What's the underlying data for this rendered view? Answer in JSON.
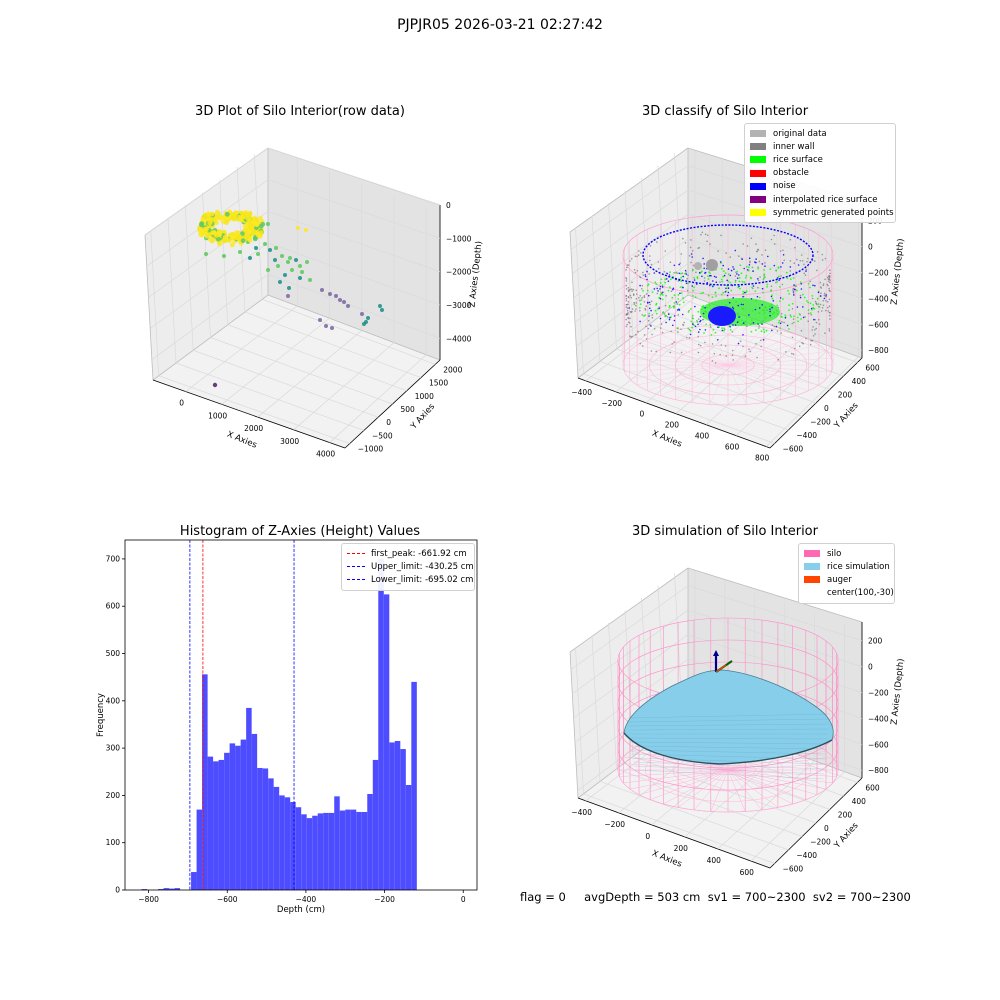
{
  "suptitle": "PJPJR05 2026-03-21 02:27:42",
  "footer": {
    "text": "flag = 0     avgDepth = 503 cm  sv1 = 700~2300  sv2 = 700~2300"
  },
  "chart_data": [
    {
      "type": "scatter",
      "projection": "3d",
      "title": "3D Plot of Silo Interior(row data)",
      "xlabel": "X Axies",
      "ylabel": "Y Axies",
      "zlabel": "Z Axies (Depth)",
      "x_ticks": [
        "0",
        "1000",
        "2000",
        "3000",
        "4000"
      ],
      "y_ticks": [
        "−1000",
        "−500",
        "0",
        "500",
        "1000",
        "1500",
        "2000"
      ],
      "z_ticks": [
        "0",
        "−1000",
        "−2000",
        "−3000",
        "−4000"
      ],
      "colormap": "viridis",
      "colors": {
        "ring": "#fde725",
        "green": "#5ec962",
        "teal": "#21918c",
        "purple": "#7e6ba6",
        "dark": "#6a3d7a"
      }
    },
    {
      "type": "scatter",
      "projection": "3d",
      "title": "3D classify of Silo Interior",
      "xlabel": "X Axies",
      "ylabel": "Y Axies",
      "zlabel": "Z Axies (Depth)",
      "x_ticks": [
        "−400",
        "−200",
        "0",
        "200",
        "400",
        "600",
        "800"
      ],
      "y_ticks": [
        "−600",
        "−400",
        "−200",
        "0",
        "200",
        "400",
        "600"
      ],
      "z_ticks": [
        "200",
        "0",
        "−200",
        "−400",
        "−600",
        "−800"
      ],
      "legend": [
        {
          "label": "original data",
          "color": "#b3b3b3"
        },
        {
          "label": "inner wall",
          "color": "#808080"
        },
        {
          "label": "rice surface",
          "color": "#00ff00"
        },
        {
          "label": "obstacle",
          "color": "#ff0000"
        },
        {
          "label": "noise",
          "color": "#0000ff"
        },
        {
          "label": "interpolated rice surface",
          "color": "#800080"
        },
        {
          "label": "symmetric generated points",
          "color": "#ffff00"
        }
      ]
    },
    {
      "type": "bar",
      "title": "Histogram of Z-Axies (Height) Values",
      "xlabel": "Depth (cm)",
      "ylabel": "Frequency",
      "xlim": [
        -860,
        35
      ],
      "ylim": [
        0,
        740
      ],
      "x_ticks": [
        -800,
        -600,
        -400,
        -200,
        0
      ],
      "y_ticks": [
        0,
        100,
        200,
        300,
        400,
        500,
        600,
        700
      ],
      "bar_color": "#4d4dff",
      "bin_width": 14,
      "bins_start": [
        -832,
        -818,
        -804,
        -790,
        -776,
        -762,
        -748,
        -734,
        -720,
        -706,
        -692,
        -678,
        -664,
        -650,
        -636,
        -622,
        -608,
        -594,
        -580,
        -566,
        -552,
        -538,
        -524,
        -510,
        -496,
        -482,
        -468,
        -454,
        -440,
        -426,
        -412,
        -398,
        -384,
        -370,
        -356,
        -342,
        -328,
        -314,
        -300,
        -286,
        -272,
        -258,
        -244,
        -230,
        -216,
        -202,
        -188,
        -174,
        -160,
        -146,
        -132,
        -118,
        -104,
        -90,
        -76,
        -62,
        -48,
        -34,
        -20,
        -6
      ],
      "counts": [
        0,
        2,
        0,
        0,
        2,
        4,
        3,
        4,
        0,
        0,
        38,
        170,
        456,
        282,
        272,
        275,
        290,
        310,
        305,
        318,
        385,
        330,
        258,
        257,
        236,
        218,
        200,
        196,
        186,
        175,
        160,
        152,
        157,
        162,
        163,
        163,
        198,
        168,
        170,
        170,
        165,
        165,
        203,
        275,
        700,
        625,
        312,
        315,
        298,
        222,
        440,
        0,
        0,
        0,
        0,
        0,
        0,
        0,
        0,
        0
      ],
      "vlines": [
        {
          "label": "first_peak: -661.92 cm",
          "x": -661.92,
          "color": "#ff0000"
        },
        {
          "label": "Upper_limit: -430.25 cm",
          "x": -430.25,
          "color": "#0000ff"
        },
        {
          "label": "Lower_limit: -695.02 cm",
          "x": -695.02,
          "color": "#0000ff"
        }
      ],
      "legend_position": "upper right"
    },
    {
      "type": "surface",
      "projection": "3d",
      "title": "3D simulation of Silo Interior",
      "xlabel": "X Axies",
      "ylabel": "Y Axies",
      "zlabel": "Z Axies (Depth)",
      "x_ticks": [
        "−400",
        "−200",
        "0",
        "200",
        "400",
        "600"
      ],
      "y_ticks": [
        "−600",
        "−400",
        "−200",
        "0",
        "200",
        "400",
        "600"
      ],
      "z_ticks": [
        "200",
        "0",
        "−200",
        "−400",
        "−600",
        "−800"
      ],
      "legend": [
        {
          "label": "silo",
          "color": "#ff69b4"
        },
        {
          "label": "rice simulation",
          "color": "#87ceeb"
        },
        {
          "label": "auger",
          "color": "#ff4500"
        },
        {
          "label": "center(100,-30)",
          "color": ""
        }
      ]
    }
  ]
}
